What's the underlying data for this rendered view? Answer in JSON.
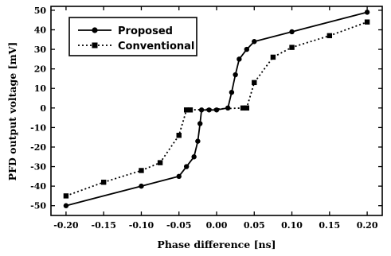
{
  "chart_data": {
    "type": "line",
    "xlabel": "Phase difference [ns]",
    "ylabel": "PFD output voltage [mV]",
    "xlim": [
      -0.22,
      0.22
    ],
    "ylim": [
      -55,
      52
    ],
    "x_ticks": [
      -0.2,
      -0.15,
      -0.1,
      -0.05,
      0.0,
      0.05,
      0.1,
      0.15,
      0.2
    ],
    "x_tick_labels": [
      "-0.20",
      "-0.15",
      "-0.10",
      "-0.05",
      "0.00",
      "0.05",
      "0.10",
      "0.15",
      "0.20"
    ],
    "y_ticks": [
      -50,
      -40,
      -30,
      -20,
      -10,
      0,
      10,
      20,
      30,
      40,
      50
    ],
    "y_tick_labels": [
      "-50",
      "-40",
      "-30",
      "-20",
      "-10",
      "0",
      "10",
      "20",
      "30",
      "40",
      "50"
    ],
    "grid": false,
    "legend_position": "top-left",
    "series": [
      {
        "name": "Proposed",
        "style": "solid",
        "marker": "circle",
        "color": "#000000",
        "x": [
          -0.2,
          -0.1,
          -0.05,
          -0.04,
          -0.03,
          -0.025,
          -0.022,
          -0.02,
          -0.01,
          0.0,
          0.015,
          0.02,
          0.025,
          0.03,
          0.04,
          0.05,
          0.1,
          0.2
        ],
        "y": [
          -50,
          -40,
          -35,
          -30,
          -25,
          -17,
          -8,
          -1,
          -1,
          -1,
          0,
          8,
          17,
          25,
          30,
          34,
          39,
          49
        ]
      },
      {
        "name": "Conventional",
        "style": "dotted",
        "marker": "square",
        "color": "#000000",
        "x": [
          -0.2,
          -0.15,
          -0.1,
          -0.075,
          -0.05,
          -0.04,
          -0.035,
          0.035,
          0.04,
          0.05,
          0.075,
          0.1,
          0.15,
          0.2
        ],
        "y": [
          -45,
          -38,
          -32,
          -28,
          -14,
          -1,
          -1,
          0,
          0,
          13,
          26,
          31,
          37,
          44
        ]
      }
    ]
  }
}
